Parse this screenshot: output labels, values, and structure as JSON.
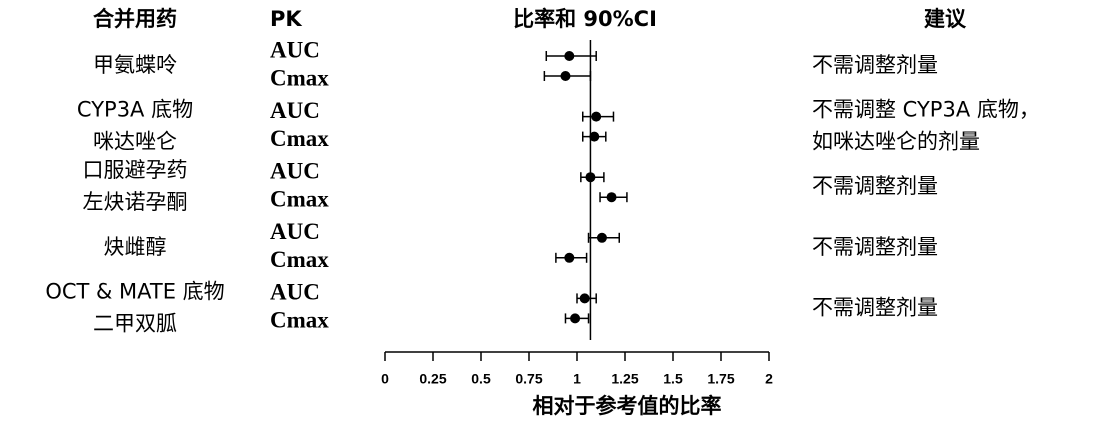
{
  "chart_data": {
    "type": "forest",
    "headers": [
      "合并用药",
      "PK",
      "比率和 90%CI",
      "建议"
    ],
    "xlabel": "相对于参考值的比率",
    "xlim": [
      0,
      2
    ],
    "xticks": [
      0,
      0.25,
      0.5,
      0.75,
      1,
      1.25,
      1.5,
      1.75,
      2
    ],
    "reference_line": 1.07,
    "color": "#000000",
    "groups": [
      {
        "drug": [
          "甲氨蝶呤"
        ],
        "advice": [
          "不需调整剂量"
        ],
        "rows": [
          {
            "pk": "AUC",
            "value": 0.96,
            "lower": 0.84,
            "upper": 1.1
          },
          {
            "pk": "Cmax",
            "value": 0.94,
            "lower": 0.83,
            "upper": 1.07
          }
        ]
      },
      {
        "drug": [
          "CYP3A 底物",
          "咪达唑仑"
        ],
        "advice": [
          "不需调整 CYP3A 底物，",
          "如咪达唑仑的剂量"
        ],
        "rows": [
          {
            "pk": "AUC",
            "value": 1.1,
            "lower": 1.03,
            "upper": 1.19
          },
          {
            "pk": "Cmax",
            "value": 1.09,
            "lower": 1.03,
            "upper": 1.15
          }
        ]
      },
      {
        "drug": [
          "口服避孕药",
          "左炔诺孕酮"
        ],
        "advice": [
          "不需调整剂量"
        ],
        "rows": [
          {
            "pk": "AUC",
            "value": 1.07,
            "lower": 1.02,
            "upper": 1.14
          },
          {
            "pk": "Cmax",
            "value": 1.18,
            "lower": 1.12,
            "upper": 1.26
          }
        ]
      },
      {
        "drug": [
          "炔雌醇"
        ],
        "advice": [
          "不需调整剂量"
        ],
        "rows": [
          {
            "pk": "AUC",
            "value": 1.13,
            "lower": 1.06,
            "upper": 1.22
          },
          {
            "pk": "Cmax",
            "value": 0.96,
            "lower": 0.89,
            "upper": 1.05
          }
        ]
      },
      {
        "drug": [
          "OCT & MATE 底物",
          "二甲双胍"
        ],
        "advice": [
          "不需调整剂量"
        ],
        "rows": [
          {
            "pk": "AUC",
            "value": 1.04,
            "lower": 1.0,
            "upper": 1.1
          },
          {
            "pk": "Cmax",
            "value": 0.99,
            "lower": 0.94,
            "upper": 1.06
          }
        ]
      }
    ]
  }
}
